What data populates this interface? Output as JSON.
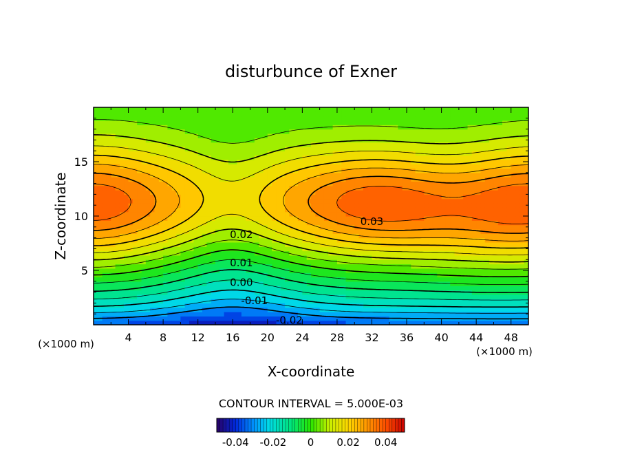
{
  "chart_data": {
    "type": "contour",
    "title": "disturbunce of Exner",
    "xlabel": "X-coordinate",
    "ylabel": "Z-coordinate",
    "x_unit_label": "(×1000 m)",
    "xlim": [
      0,
      50
    ],
    "ylim": [
      0,
      20
    ],
    "xticks": [
      4,
      8,
      12,
      16,
      20,
      24,
      28,
      32,
      36,
      40,
      44,
      48
    ],
    "yticks": [
      5,
      10,
      15
    ],
    "contour_interval_text": "CONTOUR INTERVAL = 5.000E-03",
    "contour_labels": [
      {
        "text": "0.03",
        "x": 32,
        "z": 9.5
      },
      {
        "text": "0.02",
        "x": 17,
        "z": 8.3
      },
      {
        "text": "0.01",
        "x": 17,
        "z": 5.7
      },
      {
        "text": "0.00",
        "x": 17,
        "z": 3.9
      },
      {
        "text": "-0.01",
        "x": 18.5,
        "z": 2.2
      },
      {
        "text": "-0.02",
        "x": 22.5,
        "z": 0.4
      }
    ],
    "colorbar": {
      "range": [
        -0.05,
        0.05
      ],
      "tick_labels": [
        "-0.04",
        "-0.02",
        "0",
        "0.02",
        "0.04"
      ],
      "tick_values": [
        -0.04,
        -0.02,
        0,
        0.02,
        0.04
      ]
    },
    "field_notes": "max ~0.04 near z=11 at x=0 and x~33; min ~-0.025 near surface at x~16; saddle near x~16, z~11"
  }
}
